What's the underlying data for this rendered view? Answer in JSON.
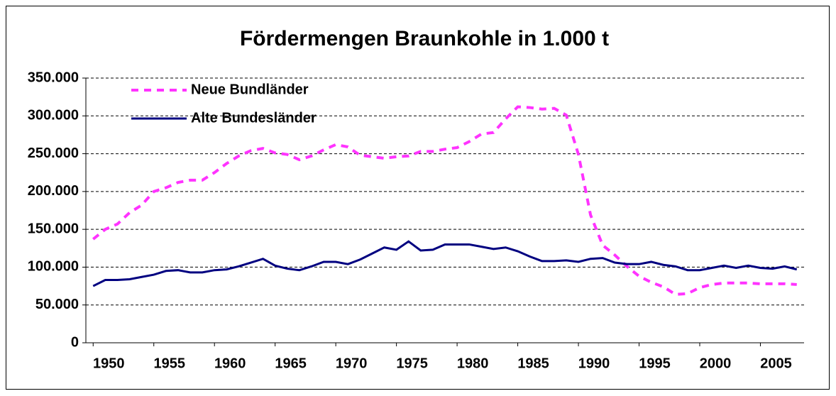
{
  "chart_data": {
    "type": "line",
    "title": "Fördermengen Braunkohle in 1.000 t",
    "x": [
      1950,
      1951,
      1952,
      1953,
      1954,
      1955,
      1956,
      1957,
      1958,
      1959,
      1960,
      1961,
      1962,
      1963,
      1964,
      1965,
      1966,
      1967,
      1968,
      1969,
      1970,
      1971,
      1972,
      1973,
      1974,
      1975,
      1976,
      1977,
      1978,
      1979,
      1980,
      1981,
      1982,
      1983,
      1984,
      1985,
      1986,
      1987,
      1988,
      1989,
      1990,
      1991,
      1992,
      1993,
      1994,
      1995,
      1996,
      1997,
      1998,
      1999,
      2000,
      2001,
      2002,
      2003,
      2004,
      2005,
      2006,
      2007,
      2008
    ],
    "series": [
      {
        "name": "Neue Bundländer",
        "color": "#ff33ff",
        "dashed": true,
        "values": [
          137000,
          150000,
          157000,
          172000,
          182000,
          200000,
          205000,
          212000,
          215000,
          215000,
          225000,
          237000,
          247000,
          254000,
          257000,
          251000,
          249000,
          242000,
          247000,
          255000,
          262000,
          259000,
          248000,
          246000,
          244000,
          246000,
          247000,
          253000,
          253000,
          256000,
          258000,
          266000,
          276000,
          278000,
          296000,
          312000,
          311000,
          309000,
          310000,
          301000,
          249000,
          169000,
          129000,
          116000,
          101000,
          88000,
          80000,
          74000,
          64000,
          65000,
          73000,
          77000,
          79000,
          79000,
          79000,
          78000,
          78000,
          78000,
          77000
        ]
      },
      {
        "name": "Alte Bundesländer",
        "color": "#000080",
        "dashed": false,
        "values": [
          75000,
          83000,
          83000,
          84000,
          87000,
          90000,
          95000,
          96000,
          93000,
          93000,
          96000,
          97000,
          101000,
          106000,
          111000,
          102000,
          98000,
          96000,
          101000,
          107000,
          107000,
          104000,
          110000,
          118000,
          126000,
          123000,
          134000,
          122000,
          123000,
          130000,
          130000,
          130000,
          127000,
          124000,
          126000,
          121000,
          114000,
          108000,
          108000,
          109000,
          107000,
          111000,
          112000,
          106000,
          104000,
          104000,
          107000,
          103000,
          101000,
          96000,
          96000,
          99000,
          102000,
          99000,
          102000,
          99000,
          98000,
          101000,
          97000
        ]
      }
    ],
    "xlim": [
      1949.4,
      2008.6
    ],
    "xticks": [
      1950,
      1955,
      1960,
      1965,
      1970,
      1975,
      1980,
      1985,
      1990,
      1995,
      2000,
      2005
    ],
    "ylim": [
      0,
      350000
    ],
    "yticks": [
      0,
      {
        "value": 50000,
        "label": "50.000"
      },
      {
        "value": 100000,
        "label": "100.000"
      },
      {
        "value": 150000,
        "label": "150.000"
      },
      {
        "value": 200000,
        "label": "200.000"
      },
      {
        "value": 250000,
        "label": "250.000"
      },
      {
        "value": 300000,
        "label": "300.000"
      },
      {
        "value": 350000,
        "label": "350.000"
      }
    ],
    "grid": true,
    "legend": "upper left"
  }
}
